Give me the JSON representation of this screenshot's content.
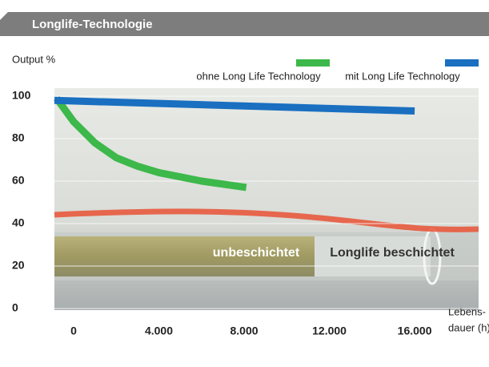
{
  "chart_data": {
    "type": "line",
    "title": "Longlife-Technologie",
    "y_label": "Output %",
    "x_label": [
      "Lebens-",
      "dauer (h)"
    ],
    "xlim": [
      -900,
      19000
    ],
    "ylim": [
      0,
      100
    ],
    "xticks": [
      0,
      {
        "value": 4000,
        "label": "4.000"
      },
      {
        "value": 8000,
        "label": "8.000"
      },
      {
        "value": 12000,
        "label": "12.000"
      },
      {
        "value": 16000,
        "label": "16.000"
      }
    ],
    "yticks": [
      0,
      20,
      40,
      60,
      80,
      100
    ],
    "grid": true,
    "series": [
      {
        "name": "ohne Long Life Technology",
        "color": "#3db84a",
        "x": [
          -800,
          0,
          1000,
          2000,
          3000,
          4000,
          6000,
          8100
        ],
        "values": [
          99,
          88,
          78,
          71,
          67,
          64,
          60,
          57
        ]
      },
      {
        "name": "mit Long Life Technology",
        "color": "#1a6fc0",
        "x": [
          -900,
          16000
        ],
        "values": [
          98,
          93
        ]
      }
    ],
    "annotations": [
      "unbeschichtet",
      "Longlife beschichtet"
    ]
  }
}
